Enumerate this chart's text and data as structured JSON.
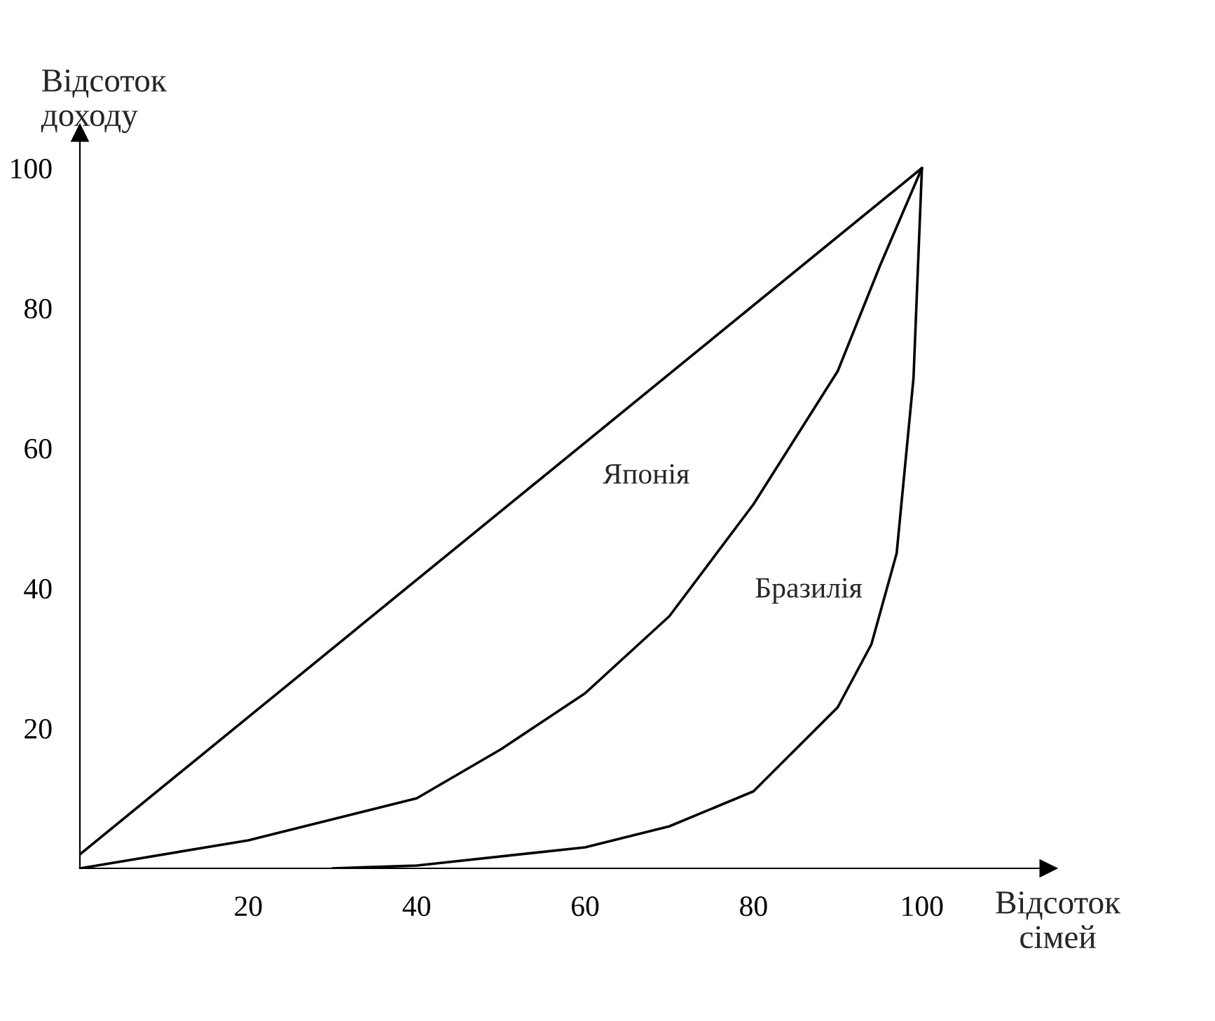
{
  "chart_data": {
    "type": "line",
    "xlabel": "Відсоток\nсімей",
    "ylabel": "Відсоток\nдоходу",
    "xlim": [
      0,
      115
    ],
    "ylim": [
      0,
      105
    ],
    "xticks": [
      20,
      40,
      60,
      80,
      100
    ],
    "yticks": [
      20,
      40,
      60,
      80,
      100
    ],
    "grid": false,
    "legend": false,
    "marker": "none",
    "line_style": "solid",
    "series": [
      {
        "color": "#000000",
        "x": [
          0,
          100
        ],
        "values": [
          2,
          100
        ]
      },
      {
        "color": "#000000",
        "x": [
          0,
          20,
          40,
          50,
          60,
          70,
          80,
          90,
          95,
          100
        ],
        "values": [
          0,
          4,
          10,
          17,
          25,
          36,
          52,
          71,
          86,
          100
        ]
      },
      {
        "color": "#000000",
        "x": [
          30,
          40,
          60,
          70,
          80,
          90,
          94,
          97,
          99,
          100
        ],
        "values": [
          0,
          0.4,
          3,
          6,
          11,
          23,
          32,
          45,
          70,
          100
        ]
      }
    ],
    "annotations": [
      "Японія",
      "Бразилія"
    ]
  }
}
